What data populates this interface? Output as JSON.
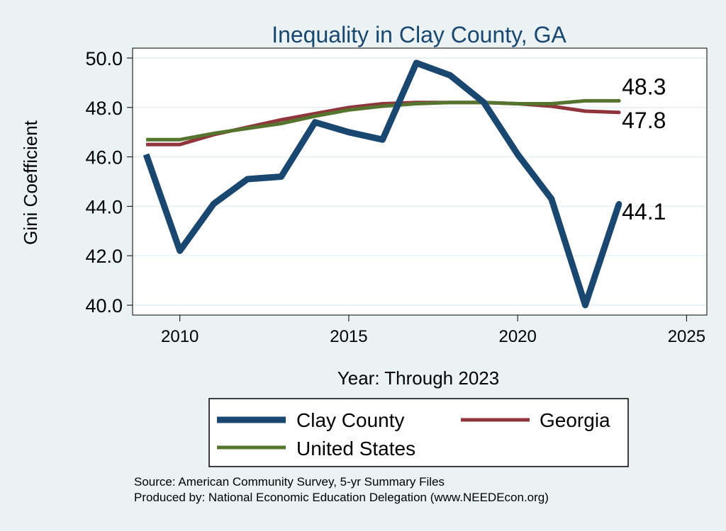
{
  "chart_data": {
    "type": "line",
    "title": "Inequality in Clay County, GA",
    "xlabel": "Year: Through 2023",
    "ylabel": "Gini Coefficient",
    "xlim": [
      2008.6,
      2025.6
    ],
    "ylim": [
      39.6,
      50.4
    ],
    "xticks": [
      2010,
      2015,
      2020,
      2025
    ],
    "yticks": [
      40,
      42,
      44,
      46,
      48,
      50
    ],
    "x": [
      2009,
      2010,
      2011,
      2012,
      2013,
      2014,
      2015,
      2016,
      2017,
      2018,
      2019,
      2020,
      2021,
      2022,
      2023
    ],
    "series": [
      {
        "name": "Clay County",
        "color": "#1a476f",
        "values": [
          46.1,
          42.2,
          44.1,
          45.1,
          45.2,
          47.4,
          47.0,
          46.7,
          49.8,
          49.3,
          48.2,
          46.1,
          44.3,
          40.0,
          44.1
        ],
        "end_label": "44.1"
      },
      {
        "name": "Georgia",
        "color": "#90353b",
        "values": [
          46.5,
          46.5,
          46.9,
          47.2,
          47.5,
          47.75,
          48.0,
          48.15,
          48.2,
          48.2,
          48.2,
          48.15,
          48.05,
          47.85,
          47.8
        ],
        "end_label": "47.8"
      },
      {
        "name": "United States",
        "color": "#55752f",
        "values": [
          46.7,
          46.7,
          46.95,
          47.15,
          47.35,
          47.65,
          47.9,
          48.05,
          48.15,
          48.2,
          48.2,
          48.15,
          48.15,
          48.27,
          48.27
        ],
        "end_label": "48.3"
      }
    ],
    "legend": {
      "position": "bottom",
      "entries": [
        "Clay County",
        "Georgia",
        "United States"
      ]
    }
  },
  "footer": {
    "source": "Source: American Community Survey, 5-yr Summary Files",
    "produced_by": "Produced by: National Economic Education Delegation (www.NEEDEcon.org)"
  },
  "colors": {
    "outer_bg": "#eaf2f3",
    "plot_bg": "#ffffff",
    "grid": "#eaf2f3",
    "title": "#1a476f",
    "text": "#000000"
  }
}
